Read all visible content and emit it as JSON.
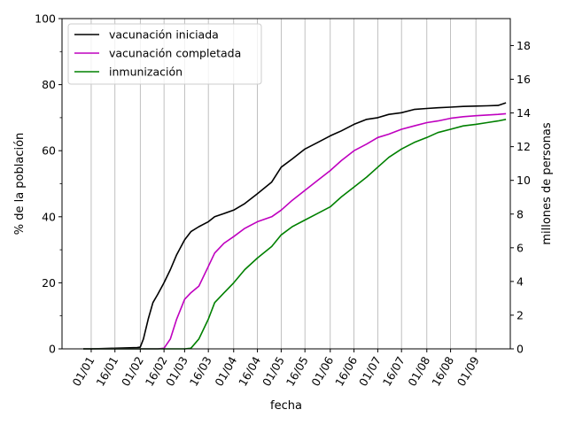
{
  "chart_data": {
    "type": "line",
    "title": "",
    "xlabel": "fecha",
    "ylabel": "% de la población",
    "ylabel_right": "millones de personas",
    "ylim": [
      0,
      100
    ],
    "ylim_right": [
      0,
      19.6
    ],
    "grid": true,
    "grid_axis": "x",
    "legend_position": "top-left",
    "x_ticks": [
      "01/01",
      "16/01",
      "01/02",
      "16/02",
      "01/03",
      "16/03",
      "01/04",
      "16/04",
      "01/05",
      "16/05",
      "01/06",
      "16/06",
      "01/07",
      "16/07",
      "01/08",
      "16/08",
      "01/09"
    ],
    "y_ticks": [
      0,
      20,
      40,
      60,
      80,
      100
    ],
    "y_ticks_right": [
      0,
      2,
      4,
      6,
      8,
      10,
      12,
      14,
      16,
      18
    ],
    "x": [
      "2020-12-27",
      "2021-01-01",
      "2021-01-16",
      "2021-01-30",
      "2021-02-01",
      "2021-02-03",
      "2021-02-06",
      "2021-02-09",
      "2021-02-12",
      "2021-02-16",
      "2021-02-20",
      "2021-02-24",
      "2021-03-01",
      "2021-03-05",
      "2021-03-10",
      "2021-03-16",
      "2021-03-20",
      "2021-03-26",
      "2021-04-01",
      "2021-04-08",
      "2021-04-16",
      "2021-04-25",
      "2021-05-01",
      "2021-05-08",
      "2021-05-16",
      "2021-05-24",
      "2021-06-01",
      "2021-06-08",
      "2021-06-16",
      "2021-06-24",
      "2021-07-01",
      "2021-07-08",
      "2021-07-16",
      "2021-07-24",
      "2021-08-01",
      "2021-08-08",
      "2021-08-16",
      "2021-08-24",
      "2021-09-01",
      "2021-09-08",
      "2021-09-15",
      "2021-09-20"
    ],
    "series": [
      {
        "name": "vacunación iniciada",
        "color": "#000000",
        "values": [
          0,
          0,
          0.2,
          0.4,
          0.5,
          3,
          9,
          14,
          16.5,
          20,
          24,
          28.5,
          33,
          35.5,
          37,
          38.5,
          40,
          41,
          42,
          44,
          47,
          50.5,
          55,
          57.5,
          60.5,
          62.5,
          64.5,
          66,
          68,
          69.5,
          70,
          71,
          71.5,
          72.5,
          72.8,
          73,
          73.2,
          73.4,
          73.5,
          73.6,
          73.7,
          74.5
        ]
      },
      {
        "name": "vacunación completada",
        "color": "#bf00bf",
        "values": [
          0,
          0,
          0,
          0,
          0,
          0,
          0,
          0,
          0,
          0.2,
          3,
          9,
          15,
          17,
          19,
          25,
          29,
          32,
          34,
          36.5,
          38.5,
          40,
          42,
          45,
          48,
          51,
          54,
          57,
          60,
          62,
          64,
          65,
          66.5,
          67.5,
          68.5,
          69,
          69.8,
          70.3,
          70.6,
          70.8,
          71,
          71.2
        ]
      },
      {
        "name": "inmunización",
        "color": "#008000",
        "values": [
          0,
          0,
          0,
          0,
          0,
          0,
          0,
          0,
          0,
          0,
          0,
          0,
          0,
          0.2,
          3,
          9,
          14,
          17,
          20,
          24,
          27.5,
          31,
          34.5,
          37,
          39,
          41,
          43,
          46,
          49,
          52,
          55,
          58,
          60.5,
          62.5,
          64,
          65.5,
          66.5,
          67.5,
          68,
          68.5,
          69,
          69.5
        ]
      }
    ]
  }
}
